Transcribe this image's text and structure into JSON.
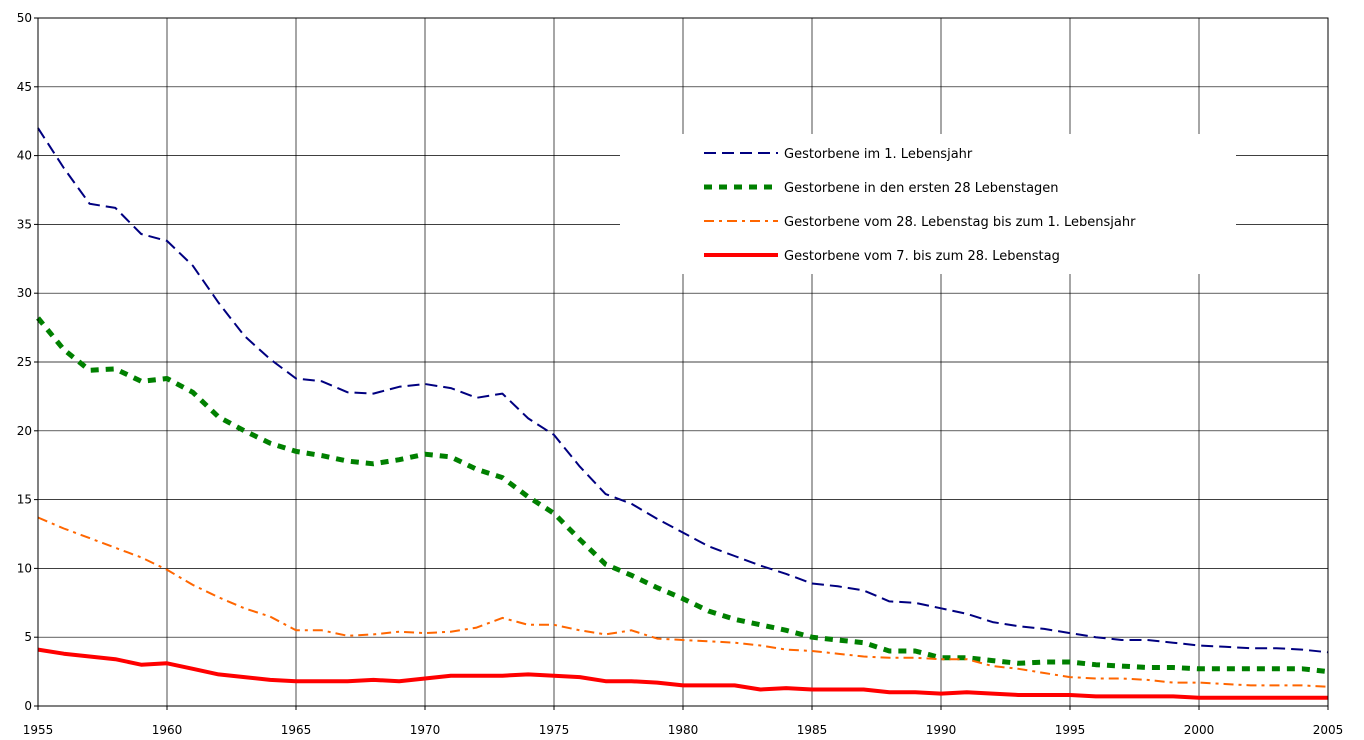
{
  "chart_data": {
    "type": "line",
    "title": "",
    "xlabel": "",
    "ylabel": "",
    "xlim": [
      1955,
      2005
    ],
    "ylim": [
      0,
      50
    ],
    "x_ticks": [
      1955,
      1960,
      1965,
      1970,
      1975,
      1980,
      1985,
      1990,
      1995,
      2000,
      2005
    ],
    "y_ticks": [
      0,
      5,
      10,
      15,
      20,
      25,
      30,
      35,
      40,
      45,
      50
    ],
    "grid": true,
    "legend_position": "upper-right",
    "x": [
      1955,
      1956,
      1957,
      1958,
      1959,
      1960,
      1961,
      1962,
      1963,
      1964,
      1965,
      1966,
      1967,
      1968,
      1969,
      1970,
      1971,
      1972,
      1973,
      1974,
      1975,
      1976,
      1977,
      1978,
      1979,
      1980,
      1981,
      1982,
      1983,
      1984,
      1985,
      1986,
      1987,
      1988,
      1989,
      1990,
      1991,
      1992,
      1993,
      1994,
      1995,
      1996,
      1997,
      1998,
      1999,
      2000,
      2001,
      2002,
      2003,
      2004,
      2005
    ],
    "series": [
      {
        "name": "Gestorbene im 1. Lebensjahr",
        "color": "#000080",
        "style": "dashed",
        "values": [
          42.0,
          39.1,
          36.5,
          36.2,
          34.3,
          33.8,
          32.0,
          29.3,
          26.9,
          25.2,
          23.8,
          23.6,
          22.8,
          22.7,
          23.2,
          23.4,
          23.1,
          22.4,
          22.7,
          20.9,
          19.7,
          17.4,
          15.4,
          14.7,
          13.6,
          12.6,
          11.6,
          10.9,
          10.2,
          9.6,
          8.9,
          8.7,
          8.4,
          7.6,
          7.5,
          7.1,
          6.7,
          6.1,
          5.8,
          5.6,
          5.3,
          5.0,
          4.8,
          4.8,
          4.6,
          4.4,
          4.3,
          4.2,
          4.2,
          4.1,
          3.9
        ]
      },
      {
        "name": "Gestorbene in den ersten 28 Lebenstagen",
        "color": "#008000",
        "style": "dotted",
        "values": [
          28.2,
          25.9,
          24.4,
          24.5,
          23.6,
          23.8,
          22.8,
          21.0,
          20.0,
          19.1,
          18.5,
          18.2,
          17.8,
          17.6,
          17.9,
          18.3,
          18.1,
          17.2,
          16.6,
          15.2,
          14.0,
          12.1,
          10.3,
          9.5,
          8.6,
          7.8,
          6.9,
          6.3,
          5.9,
          5.5,
          5.0,
          4.8,
          4.6,
          4.0,
          4.0,
          3.5,
          3.5,
          3.3,
          3.1,
          3.2,
          3.2,
          3.0,
          2.9,
          2.8,
          2.8,
          2.7,
          2.7,
          2.7,
          2.7,
          2.7,
          2.5
        ]
      },
      {
        "name": "Gestorbene vom 28. Lebenstag bis zum 1. Lebensjahr",
        "color": "#ff6600",
        "style": "dash-dot",
        "values": [
          13.7,
          12.9,
          12.2,
          11.5,
          10.8,
          9.9,
          8.8,
          7.9,
          7.1,
          6.5,
          5.5,
          5.5,
          5.1,
          5.2,
          5.4,
          5.3,
          5.4,
          5.7,
          6.4,
          5.9,
          5.9,
          5.5,
          5.2,
          5.5,
          4.9,
          4.8,
          4.7,
          4.6,
          4.4,
          4.1,
          4.0,
          3.8,
          3.6,
          3.5,
          3.5,
          3.4,
          3.4,
          2.9,
          2.7,
          2.4,
          2.1,
          2.0,
          2.0,
          1.9,
          1.7,
          1.7,
          1.6,
          1.5,
          1.5,
          1.5,
          1.4
        ]
      },
      {
        "name": "Gestorbene vom 7. bis zum 28. Lebenstag",
        "color": "#ff0000",
        "style": "solid",
        "values": [
          4.1,
          3.8,
          3.6,
          3.4,
          3.0,
          3.1,
          2.7,
          2.3,
          2.1,
          1.9,
          1.8,
          1.8,
          1.8,
          1.9,
          1.8,
          2.0,
          2.2,
          2.2,
          2.2,
          2.3,
          2.2,
          2.1,
          1.8,
          1.8,
          1.7,
          1.5,
          1.5,
          1.5,
          1.2,
          1.3,
          1.2,
          1.2,
          1.2,
          1.0,
          1.0,
          0.9,
          1.0,
          0.9,
          0.8,
          0.8,
          0.8,
          0.7,
          0.7,
          0.7,
          0.7,
          0.6,
          0.6,
          0.6,
          0.6,
          0.6,
          0.6
        ]
      }
    ]
  }
}
